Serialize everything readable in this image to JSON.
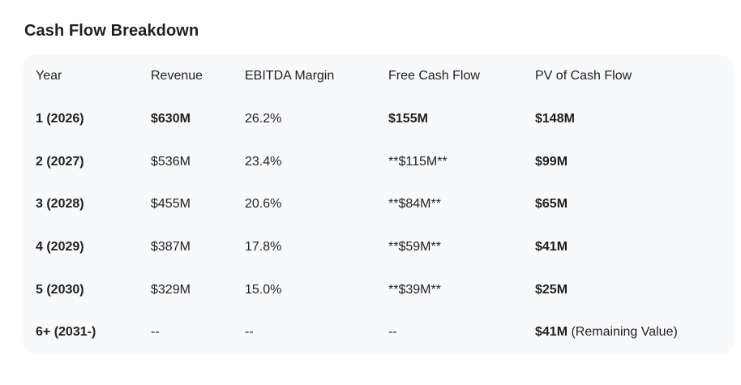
{
  "title": "Cash Flow Breakdown",
  "colors": {
    "page_background": "#ffffff",
    "table_background": "#f8f9fb",
    "text": "#1f1f1f"
  },
  "table": {
    "columns": [
      {
        "label": "Year",
        "bold": false
      },
      {
        "label": "Revenue",
        "bold": false
      },
      {
        "label": "EBITDA Margin",
        "bold": false
      },
      {
        "label": "Free Cash Flow",
        "bold": false
      },
      {
        "label": "PV of Cash Flow",
        "bold": true
      }
    ],
    "rows": [
      {
        "cells": [
          {
            "text": "1 (2026)",
            "bold": true
          },
          {
            "text": "$630M",
            "bold": true
          },
          {
            "text": "26.2%",
            "bold": false
          },
          {
            "text": "$155M",
            "bold": true
          },
          {
            "text": "$148M",
            "bold": true
          }
        ]
      },
      {
        "cells": [
          {
            "text": "2 (2027)",
            "bold": true
          },
          {
            "text": "$536M",
            "bold": false
          },
          {
            "text": "23.4%",
            "bold": false
          },
          {
            "text": "**$115M**",
            "bold": false
          },
          {
            "text": "$99M",
            "bold": true
          }
        ]
      },
      {
        "cells": [
          {
            "text": "3 (2028)",
            "bold": true
          },
          {
            "text": "$455M",
            "bold": false
          },
          {
            "text": "20.6%",
            "bold": false
          },
          {
            "text": "**$84M**",
            "bold": false
          },
          {
            "text": "$65M",
            "bold": true
          }
        ]
      },
      {
        "cells": [
          {
            "text": "4 (2029)",
            "bold": true
          },
          {
            "text": "$387M",
            "bold": false
          },
          {
            "text": "17.8%",
            "bold": false
          },
          {
            "text": "**$59M**",
            "bold": false
          },
          {
            "text": "$41M",
            "bold": true
          }
        ]
      },
      {
        "cells": [
          {
            "text": "5 (2030)",
            "bold": true
          },
          {
            "text": "$329M",
            "bold": false
          },
          {
            "text": "15.0%",
            "bold": false
          },
          {
            "text": "**$39M**",
            "bold": false
          },
          {
            "text": "$25M",
            "bold": true
          }
        ]
      },
      {
        "cells": [
          {
            "text": "6+ (2031-)",
            "bold": true
          },
          {
            "text": "--",
            "bold": false
          },
          {
            "text": "--",
            "bold": false
          },
          {
            "text": "--",
            "bold": false
          },
          {
            "text": "$41M",
            "bold": true,
            "suffix": " (Remaining Value)"
          }
        ]
      }
    ]
  }
}
